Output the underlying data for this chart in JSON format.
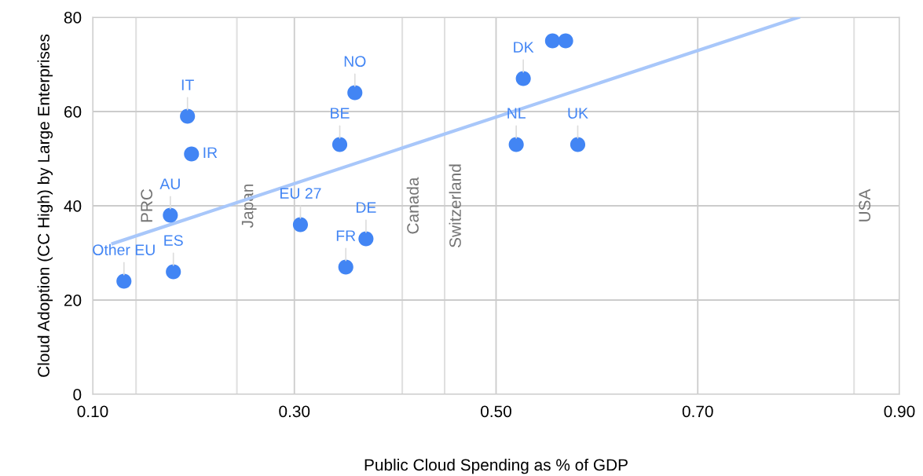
{
  "chart_data": {
    "type": "scatter",
    "xlabel": "Public Cloud Spending as % of GDP",
    "ylabel": "Cloud Adoption (CC High) by Large Enterprises",
    "xlim": [
      0.1,
      0.9
    ],
    "xticks": [
      {
        "value": 0.1,
        "label": "0.10"
      },
      {
        "value": 0.3,
        "label": "0.30"
      },
      {
        "value": 0.5,
        "label": "0.50"
      },
      {
        "value": 0.7,
        "label": "0.70"
      },
      {
        "value": 0.9,
        "label": "0.90"
      }
    ],
    "ylim": [
      0,
      80
    ],
    "yticks": [
      0,
      20,
      40,
      60,
      80
    ],
    "grid": true,
    "series": [
      {
        "type": "scatter",
        "marker": "circle",
        "color": "#4285f4",
        "x": [
          0.131,
          0.18,
          0.177,
          0.194,
          0.198,
          0.306,
          0.345,
          0.36,
          0.351,
          0.371,
          0.52,
          0.527,
          0.556,
          0.569,
          0.581
        ],
        "values": [
          24,
          26,
          38,
          59,
          51,
          36,
          53,
          64,
          27,
          33,
          53,
          67,
          75,
          75,
          53
        ]
      },
      {
        "type": "line",
        "color": "#a8c7fa",
        "x": [
          0.12,
          0.8
        ],
        "values": [
          32,
          80
        ]
      }
    ],
    "annotations": [
      {
        "text": "Other EU",
        "x": 0.131,
        "y": 24
      },
      {
        "text": "ES",
        "x": 0.18,
        "y": 26
      },
      {
        "text": "AU",
        "x": 0.177,
        "y": 38
      },
      {
        "text": "IT",
        "x": 0.194,
        "y": 59
      },
      {
        "text": "IR",
        "x": 0.198,
        "y": 51
      },
      {
        "text": "EU 27",
        "x": 0.306,
        "y": 36
      },
      {
        "text": "BE",
        "x": 0.345,
        "y": 53
      },
      {
        "text": "NO",
        "x": 0.36,
        "y": 64
      },
      {
        "text": "FR",
        "x": 0.351,
        "y": 27
      },
      {
        "text": "DE",
        "x": 0.371,
        "y": 33
      },
      {
        "text": "NL",
        "x": 0.52,
        "y": 53
      },
      {
        "text": "DK",
        "x": 0.527,
        "y": 67
      },
      {
        "text": "UK",
        "x": 0.581,
        "y": 53
      }
    ],
    "ref_lines": [
      {
        "axis": "x",
        "value": 0.143,
        "label": "PRC",
        "color": "#e0e0e0"
      },
      {
        "axis": "x",
        "value": 0.243,
        "label": "Japan",
        "color": "#e0e0e0"
      },
      {
        "axis": "x",
        "value": 0.407,
        "label": "Canada",
        "color": "#e0e0e0"
      },
      {
        "axis": "x",
        "value": 0.449,
        "label": "Switzerland",
        "color": "#e0e0e0"
      },
      {
        "axis": "x",
        "value": 0.855,
        "label": "USA",
        "color": "#e0e0e0"
      }
    ]
  }
}
